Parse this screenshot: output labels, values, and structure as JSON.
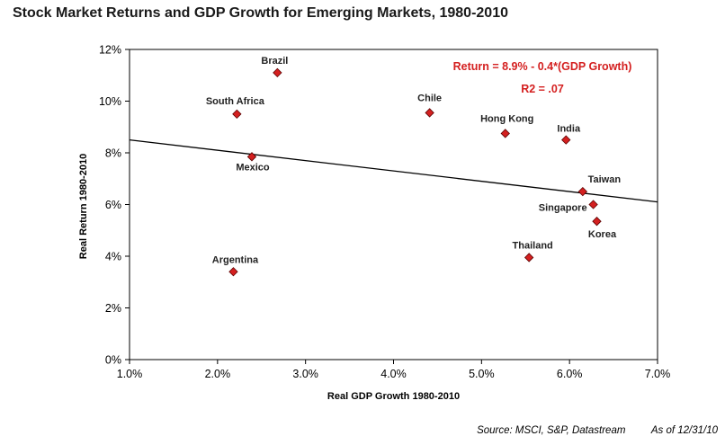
{
  "chart_data": {
    "type": "scatter",
    "title": "Stock Market Returns and GDP Growth for Emerging Markets, 1980-2010",
    "xlabel": "Real GDP Growth 1980-2010",
    "ylabel": "Real Return 1980-2010",
    "xlim": [
      1.0,
      7.0
    ],
    "ylim": [
      0,
      12
    ],
    "x_ticks": [
      "1.0%",
      "2.0%",
      "3.0%",
      "4.0%",
      "5.0%",
      "6.0%",
      "7.0%"
    ],
    "y_ticks": [
      "0%",
      "2%",
      "4%",
      "6%",
      "8%",
      "10%",
      "12%"
    ],
    "grid": false,
    "marker_color": "#d42020",
    "points": [
      {
        "label": "Brazil",
        "x": 2.68,
        "y": 11.1
      },
      {
        "label": "South Africa",
        "x": 2.22,
        "y": 9.5
      },
      {
        "label": "Mexico",
        "x": 2.39,
        "y": 7.85
      },
      {
        "label": "Argentina",
        "x": 2.18,
        "y": 3.4
      },
      {
        "label": "Chile",
        "x": 4.41,
        "y": 9.55
      },
      {
        "label": "Hong Kong",
        "x": 5.27,
        "y": 8.75
      },
      {
        "label": "India",
        "x": 5.96,
        "y": 8.5
      },
      {
        "label": "Taiwan",
        "x": 6.15,
        "y": 6.5
      },
      {
        "label": "Singapore",
        "x": 6.27,
        "y": 6.0
      },
      {
        "label": "Korea",
        "x": 6.31,
        "y": 5.35
      },
      {
        "label": "Thailand",
        "x": 5.54,
        "y": 3.95
      }
    ],
    "trendline": {
      "intercept": 8.9,
      "slope": -0.4
    },
    "annotations": [
      {
        "text": "Return = 8.9% - 0.4*(GDP Growth)",
        "color": "#d42020"
      },
      {
        "text": "R2 = .07",
        "color": "#d42020"
      }
    ]
  },
  "footer": {
    "source": "Source:  MSCI, S&P, Datastream",
    "asof": "As of 12/31/10"
  }
}
